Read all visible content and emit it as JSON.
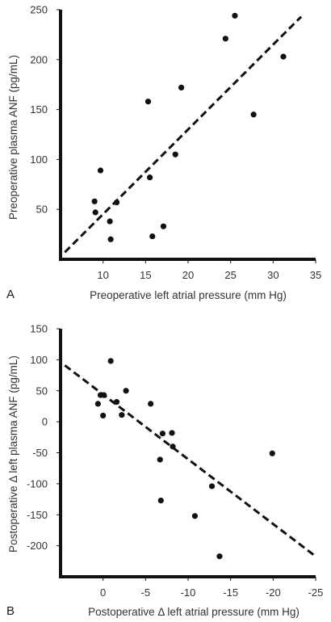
{
  "colors": {
    "ink": "#111111",
    "text": "#333333",
    "background": "#ffffff"
  },
  "chart_data": [
    {
      "type": "scatter",
      "panel_label": "A",
      "title": "",
      "xlabel": "Preoperative left atrial pressure (mm Hg)",
      "ylabel": "Preoperative plasma ANF (pg/mL)",
      "xlim": [
        5,
        35
      ],
      "ylim": [
        0,
        250
      ],
      "xticks": [
        10,
        15,
        20,
        25,
        30,
        35
      ],
      "yticks": [
        50,
        100,
        150,
        200,
        250
      ],
      "grid": false,
      "legend": "none",
      "series": [
        {
          "points": [
            [
              9.0,
              58
            ],
            [
              9.1,
              47
            ],
            [
              9.7,
              89
            ],
            [
              10.8,
              38
            ],
            [
              10.9,
              20
            ],
            [
              11.6,
              57
            ],
            [
              15.3,
              158
            ],
            [
              15.5,
              82
            ],
            [
              15.8,
              23
            ],
            [
              17.1,
              33
            ],
            [
              18.5,
              105
            ],
            [
              19.2,
              172
            ],
            [
              24.4,
              221
            ],
            [
              25.5,
              244
            ],
            [
              27.7,
              145
            ],
            [
              31.2,
              203
            ]
          ]
        }
      ],
      "trendline": {
        "style": "dashed",
        "x": [
          5.5,
          33.3
        ],
        "y": [
          7,
          243
        ]
      }
    },
    {
      "type": "scatter",
      "panel_label": "B",
      "title": "",
      "xlabel": "Postoperative Δ left atrial pressure (mm Hg)",
      "ylabel": "Postoperative Δ left plasma ANF (pg/mL)",
      "xlim": [
        5,
        -25
      ],
      "ylim": [
        -250,
        150
      ],
      "xaxis_reversed": true,
      "xticks": [
        0,
        -5,
        -10,
        -15,
        -20,
        -25
      ],
      "yticks": [
        150,
        100,
        50,
        0,
        -50,
        -100,
        -150,
        -200
      ],
      "grid": false,
      "legend": "none",
      "series": [
        {
          "points": [
            [
              0.6,
              29
            ],
            [
              0.3,
              43
            ],
            [
              0.0,
              10
            ],
            [
              -0.1,
              43
            ],
            [
              -0.9,
              98
            ],
            [
              -1.6,
              32
            ],
            [
              -2.2,
              11
            ],
            [
              -2.7,
              50
            ],
            [
              -5.6,
              29
            ],
            [
              -6.7,
              -61
            ],
            [
              -6.8,
              -127
            ],
            [
              -7.0,
              -19
            ],
            [
              -8.1,
              -18
            ],
            [
              -8.2,
              -40
            ],
            [
              -10.8,
              -152
            ],
            [
              -12.8,
              -104
            ],
            [
              -13.7,
              -217
            ],
            [
              -19.9,
              -51
            ]
          ]
        }
      ],
      "trendline": {
        "style": "dashed",
        "x": [
          4.5,
          -24.8
        ],
        "y": [
          91,
          -215
        ]
      }
    }
  ]
}
